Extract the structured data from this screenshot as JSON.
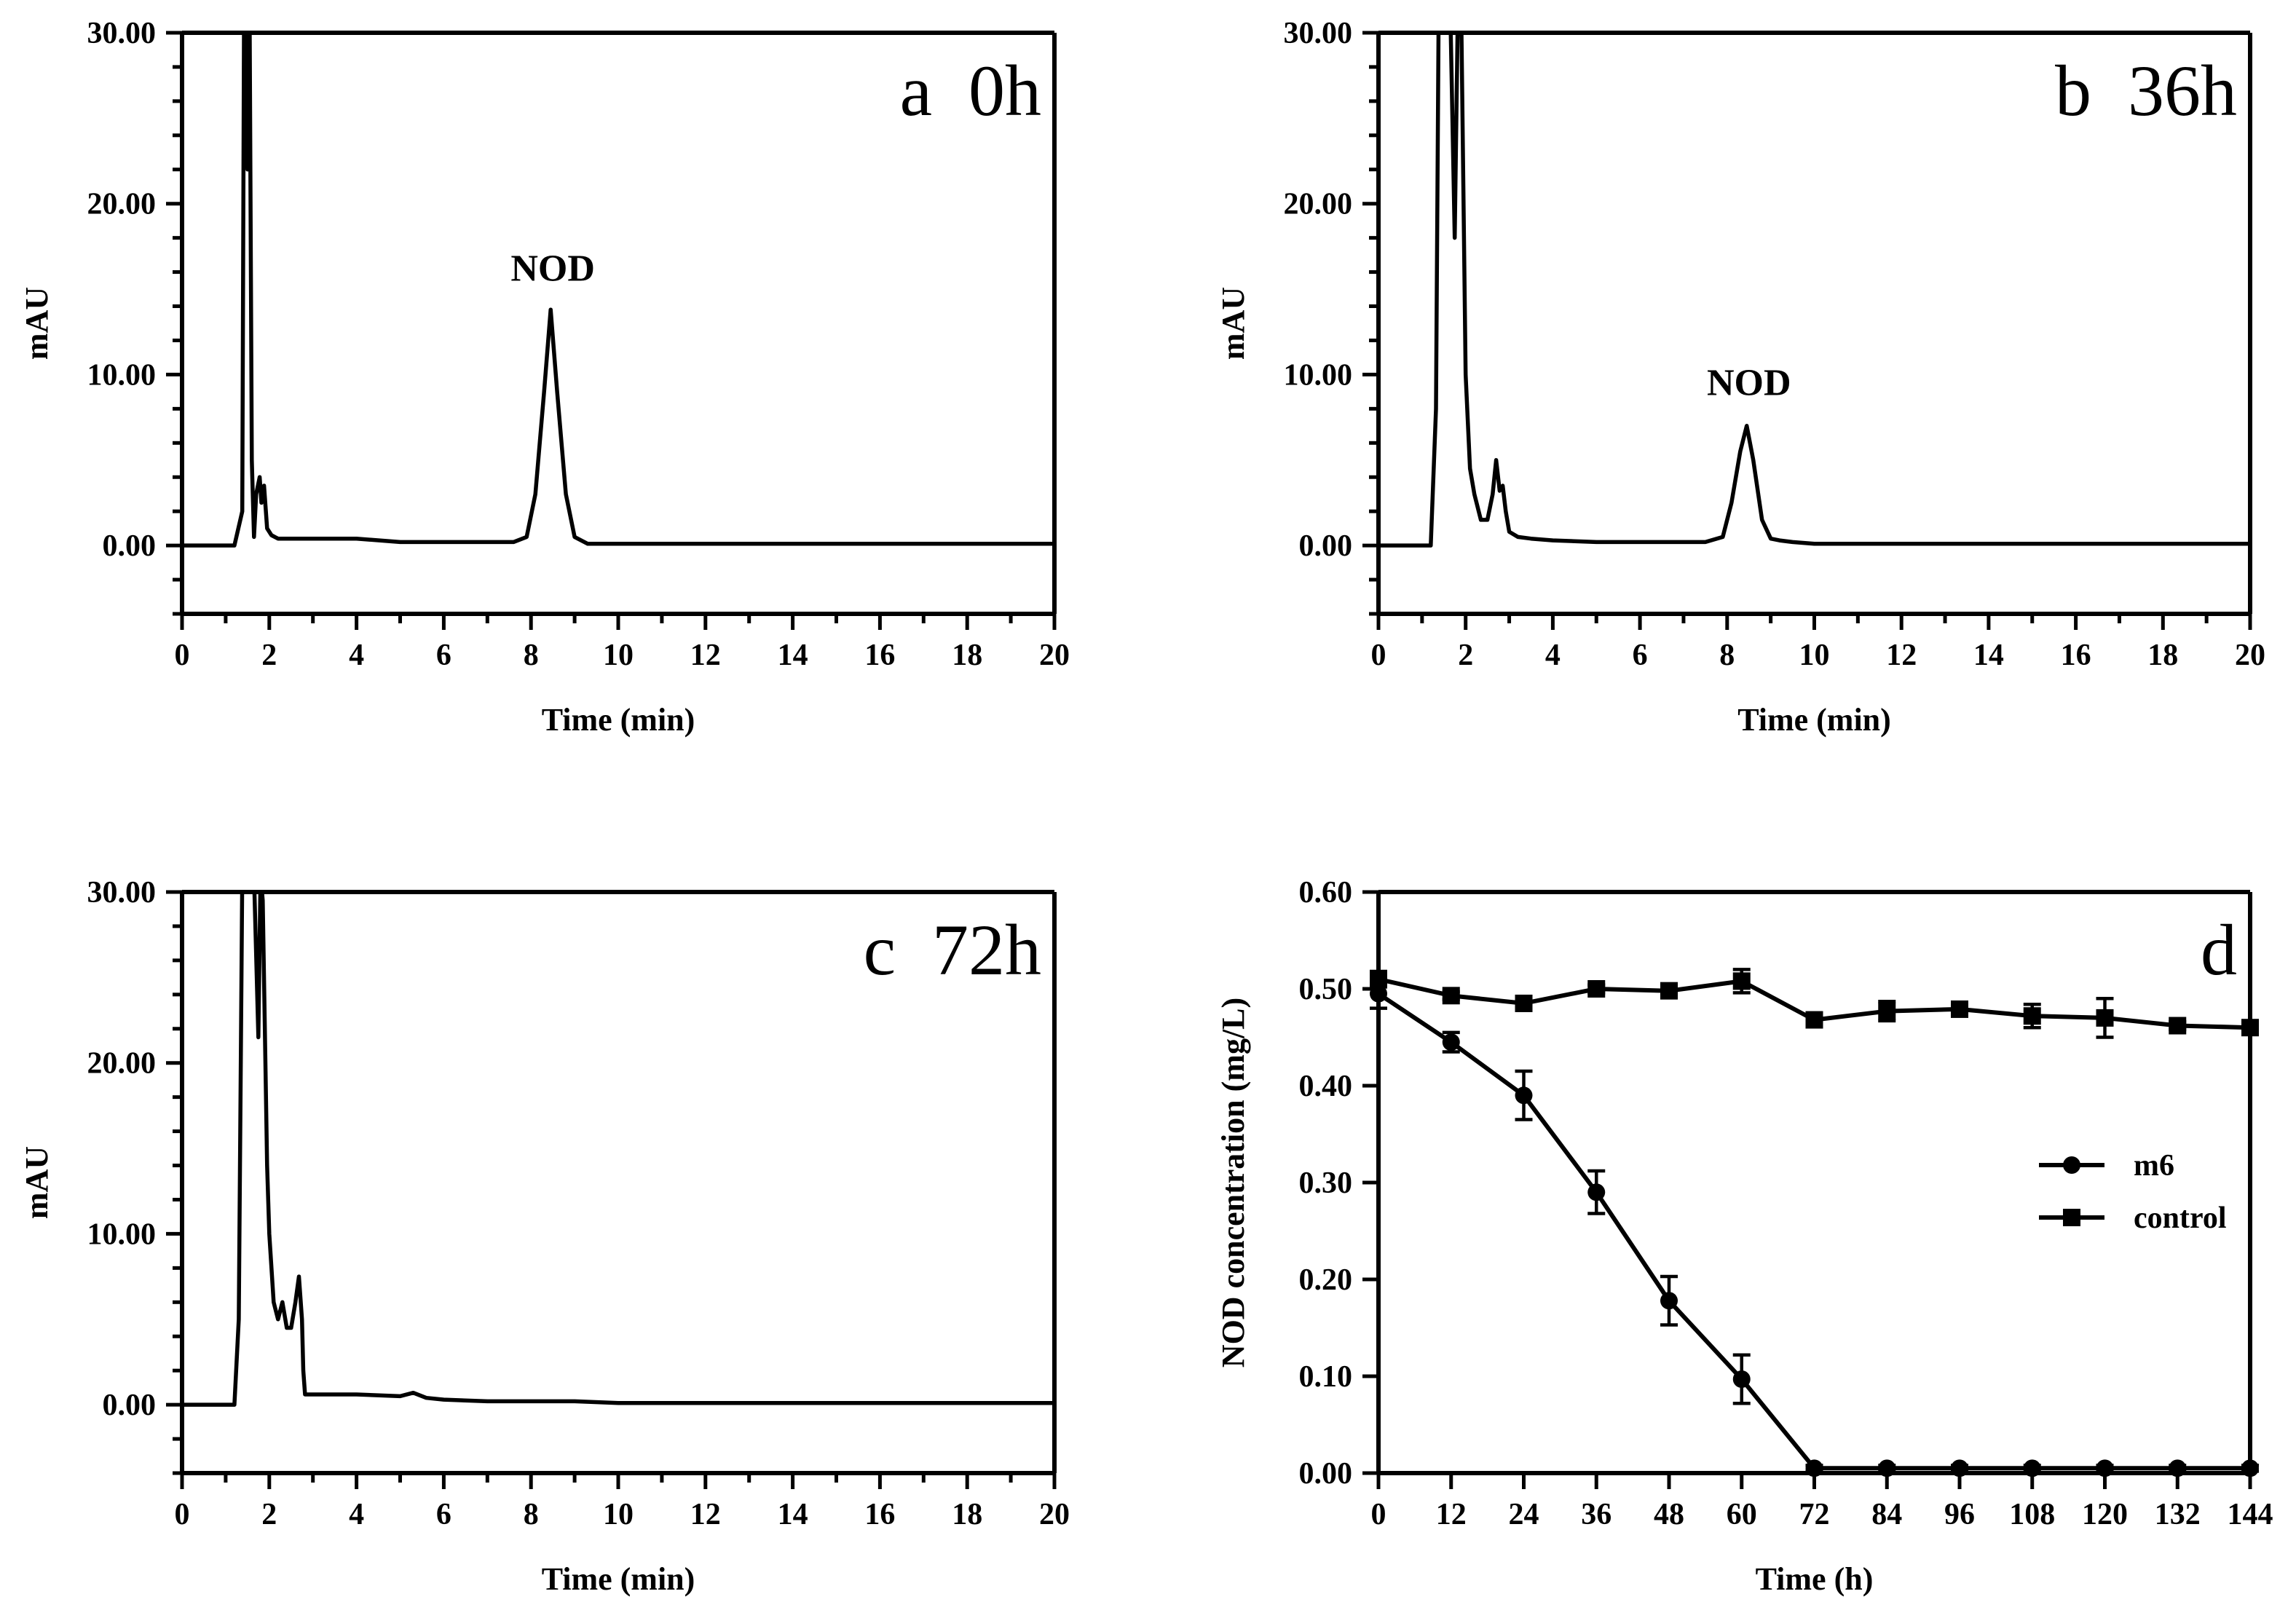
{
  "chart_data": [
    {
      "id": "a",
      "type": "line",
      "panel_label": "a  0h",
      "title": "",
      "xlabel": "Time (min)",
      "ylabel": "mAU",
      "xlim": [
        0,
        20
      ],
      "ylim": [
        -4,
        30
      ],
      "x_ticks": [
        "0",
        "2",
        "4",
        "6",
        "8",
        "10",
        "12",
        "14",
        "16",
        "18",
        "20"
      ],
      "y_ticks": [
        "0.00",
        "10.00",
        "20.00",
        "30.00"
      ],
      "annotations": [
        {
          "text": "NOD",
          "x": 8.5,
          "y": 15.5
        }
      ],
      "series": [
        {
          "name": "chromatogram",
          "x": [
            0,
            1.2,
            1.38,
            1.42,
            1.45,
            1.5,
            1.55,
            1.6,
            1.65,
            1.7,
            1.78,
            1.82,
            1.88,
            1.95,
            2.05,
            2.2,
            2.5,
            3,
            4,
            5,
            6,
            7,
            7.6,
            7.9,
            8.1,
            8.3,
            8.45,
            8.6,
            8.8,
            9,
            9.3,
            10,
            12,
            15,
            20
          ],
          "y": [
            0,
            0,
            2,
            31,
            31,
            22,
            31,
            5,
            0.5,
            3,
            4,
            2.5,
            3.5,
            1,
            0.6,
            0.4,
            0.4,
            0.4,
            0.4,
            0.2,
            0.2,
            0.2,
            0.2,
            0.5,
            3,
            9,
            13.8,
            9,
            3,
            0.5,
            0.1,
            0.1,
            0.1,
            0.1,
            0.1
          ]
        }
      ]
    },
    {
      "id": "b",
      "type": "line",
      "panel_label": "b  36h",
      "title": "",
      "xlabel": "Time (min)",
      "ylabel": "mAU",
      "xlim": [
        0,
        20
      ],
      "ylim": [
        -4,
        30
      ],
      "x_ticks": [
        "0",
        "2",
        "4",
        "6",
        "8",
        "10",
        "12",
        "14",
        "16",
        "18",
        "20"
      ],
      "y_ticks": [
        "0.00",
        "10.00",
        "20.00",
        "30.00"
      ],
      "annotations": [
        {
          "text": "NOD",
          "x": 8.5,
          "y": 8.8
        }
      ],
      "series": [
        {
          "name": "chromatogram",
          "x": [
            0,
            1.2,
            1.32,
            1.38,
            1.5,
            1.65,
            1.75,
            1.82,
            1.9,
            2,
            2.1,
            2.2,
            2.35,
            2.5,
            2.62,
            2.7,
            2.78,
            2.85,
            2.92,
            3,
            3.2,
            3.5,
            4,
            5,
            6,
            7.5,
            7.9,
            8.1,
            8.3,
            8.45,
            8.6,
            8.8,
            9,
            9.2,
            9.5,
            10,
            12,
            15,
            20
          ],
          "y": [
            0,
            0,
            8,
            31,
            31,
            31,
            18,
            31,
            31,
            10,
            4.5,
            3,
            1.5,
            1.5,
            3,
            5,
            3.2,
            3.5,
            2,
            0.8,
            0.5,
            0.4,
            0.3,
            0.2,
            0.2,
            0.2,
            0.5,
            2.5,
            5.5,
            7,
            5,
            1.5,
            0.4,
            0.3,
            0.2,
            0.1,
            0.1,
            0.1,
            0.1
          ]
        }
      ]
    },
    {
      "id": "c",
      "type": "line",
      "panel_label": "c  72h",
      "title": "",
      "xlabel": "Time (min)",
      "ylabel": "mAU",
      "xlim": [
        0,
        20
      ],
      "ylim": [
        -4,
        30
      ],
      "x_ticks": [
        "0",
        "2",
        "4",
        "6",
        "8",
        "10",
        "12",
        "14",
        "16",
        "18",
        "20"
      ],
      "y_ticks": [
        "0.00",
        "10.00",
        "20.00",
        "30.00"
      ],
      "annotations": [],
      "series": [
        {
          "name": "chromatogram",
          "x": [
            0,
            1.2,
            1.3,
            1.38,
            1.5,
            1.65,
            1.75,
            1.8,
            1.85,
            1.95,
            2,
            2.1,
            2.2,
            2.3,
            2.4,
            2.5,
            2.6,
            2.68,
            2.75,
            2.78,
            2.82,
            3,
            4,
            5,
            5.3,
            5.6,
            6,
            7,
            8,
            9,
            10,
            12,
            15,
            20
          ],
          "y": [
            0,
            0,
            5,
            31,
            31,
            31,
            21.5,
            31,
            29.5,
            14,
            10,
            6,
            5,
            6,
            4.5,
            4.5,
            6,
            7.5,
            5,
            2,
            0.6,
            0.6,
            0.6,
            0.5,
            0.7,
            0.4,
            0.3,
            0.2,
            0.2,
            0.2,
            0.1,
            0.1,
            0.1,
            0.1
          ]
        }
      ]
    },
    {
      "id": "d",
      "type": "line",
      "panel_label": "d",
      "title": "",
      "xlabel": "Time (h)",
      "ylabel": "NOD concentration (mg/L)",
      "xlim": [
        0,
        144
      ],
      "ylim": [
        0,
        0.6
      ],
      "x_ticks": [
        "0",
        "12",
        "24",
        "36",
        "48",
        "60",
        "72",
        "84",
        "96",
        "108",
        "120",
        "132",
        "144"
      ],
      "y_ticks": [
        "0.00",
        "0.10",
        "0.20",
        "0.30",
        "0.40",
        "0.50",
        "0.60"
      ],
      "legend": {
        "position": "right-middle",
        "entries": [
          "m6",
          "control"
        ]
      },
      "x": [
        0,
        12,
        24,
        36,
        48,
        60,
        72,
        84,
        96,
        108,
        120,
        132,
        144
      ],
      "series": [
        {
          "name": "m6",
          "marker": "circle",
          "values": [
            0.495,
            0.445,
            0.39,
            0.29,
            0.178,
            0.097,
            0.005,
            0.005,
            0.005,
            0.005,
            0.005,
            0.005,
            0.005
          ],
          "errors": [
            0.015,
            0.01,
            0.025,
            0.022,
            0.025,
            0.025,
            0.003,
            0.003,
            0.003,
            0.003,
            0.003,
            0.003,
            0.003
          ]
        },
        {
          "name": "control",
          "marker": "square",
          "values": [
            0.51,
            0.493,
            0.485,
            0.5,
            0.498,
            0.508,
            0.468,
            0.477,
            0.479,
            0.472,
            0.47,
            0.462,
            0.46
          ],
          "errors": [
            0.008,
            0.004,
            0.005,
            0.004,
            0.004,
            0.012,
            0.004,
            0.01,
            0.006,
            0.012,
            0.02,
            0.004,
            0.005
          ]
        }
      ]
    }
  ]
}
